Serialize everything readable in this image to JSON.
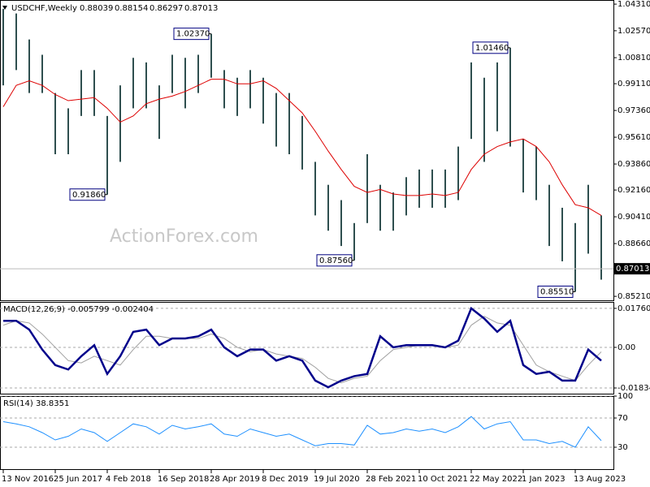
{
  "chart_data": [
    {
      "type": "range",
      "title": "USDCHF,Weekly",
      "header_values": [
        0.88039,
        0.88154,
        0.86297,
        0.87013
      ],
      "watermark": "ActionForex.com",
      "categories": [
        "13 Nov 2016",
        null,
        null,
        null,
        "25 Jun 2017",
        null,
        null,
        null,
        "4 Feb 2018",
        null,
        null,
        null,
        "16 Sep 2018",
        null,
        null,
        null,
        "28 Apr 2019",
        null,
        null,
        null,
        "8 Dec 2019",
        null,
        null,
        null,
        "19 Jul 2020",
        null,
        null,
        null,
        "28 Feb 2021",
        null,
        null,
        null,
        "10 Oct 2021",
        null,
        null,
        null,
        "22 May 2022",
        null,
        null,
        null,
        "1 Jan 2023",
        null,
        null,
        null,
        "13 Aug 2023",
        null,
        null
      ],
      "high": [
        1.04,
        1.037,
        1.02,
        1.01,
        0.985,
        0.975,
        1.0,
        1.0,
        0.97,
        0.99,
        1.008,
        1.005,
        0.99,
        1.01,
        1.008,
        1.01,
        1.0237,
        1.0,
        0.995,
        1.0,
        0.995,
        0.985,
        0.985,
        0.97,
        0.94,
        0.925,
        0.915,
        0.9,
        0.945,
        0.925,
        0.92,
        0.93,
        0.935,
        0.935,
        0.935,
        0.95,
        1.005,
        0.995,
        1.005,
        1.0146,
        0.955,
        0.95,
        0.925,
        0.91,
        0.9,
        0.925,
        0.905
      ],
      "low": [
        0.99,
        1.0,
        0.985,
        0.985,
        0.945,
        0.945,
        0.97,
        0.97,
        0.9186,
        0.94,
        0.975,
        0.975,
        0.955,
        0.985,
        0.975,
        0.985,
        0.995,
        0.975,
        0.97,
        0.975,
        0.965,
        0.95,
        0.945,
        0.935,
        0.905,
        0.895,
        0.885,
        0.8756,
        0.9,
        0.895,
        0.895,
        0.905,
        0.91,
        0.91,
        0.91,
        0.915,
        0.955,
        0.94,
        0.96,
        0.95,
        0.92,
        0.915,
        0.885,
        0.875,
        0.8551,
        0.88,
        0.863
      ],
      "color": "#2f4f4f",
      "ma": {
        "color": "#dd0000",
        "values": [
          0.976,
          0.99,
          0.993,
          0.99,
          0.984,
          0.98,
          0.981,
          0.982,
          0.975,
          0.966,
          0.97,
          0.978,
          0.981,
          0.983,
          0.986,
          0.99,
          0.994,
          0.994,
          0.991,
          0.991,
          0.993,
          0.988,
          0.98,
          0.972,
          0.96,
          0.947,
          0.935,
          0.924,
          0.92,
          0.922,
          0.919,
          0.918,
          0.918,
          0.919,
          0.918,
          0.92,
          0.935,
          0.945,
          0.95,
          0.953,
          0.955,
          0.95,
          0.94,
          0.925,
          0.912,
          0.91,
          0.905
        ]
      },
      "annotations": [
        {
          "value": 1.0237,
          "label": "1.02370"
        },
        {
          "value": 1.0146,
          "label": "1.01460"
        },
        {
          "value": 0.9186,
          "label": "0.91860"
        },
        {
          "value": 0.8756,
          "label": "0.87560"
        },
        {
          "value": 0.8551,
          "label": "0.85510"
        }
      ],
      "ylim": [
        0.8495,
        1.0458
      ],
      "yticks": [
        {
          "value": 1.0431,
          "label": "1.04310"
        },
        {
          "value": 1.0257,
          "label": "1.02570"
        },
        {
          "value": 1.0081,
          "label": "1.00810"
        },
        {
          "value": 0.9911,
          "label": "0.99110"
        },
        {
          "value": 0.9736,
          "label": "0.97360"
        },
        {
          "value": 0.9561,
          "label": "0.95610"
        },
        {
          "value": 0.9386,
          "label": "0.93860"
        },
        {
          "value": 0.9216,
          "label": "0.92160"
        },
        {
          "value": 0.9041,
          "label": "0.90410"
        },
        {
          "value": 0.8866,
          "label": "0.88660"
        },
        {
          "value": 0.8521,
          "label": "0.85210"
        }
      ]
    },
    {
      "type": "line",
      "title": "MACD(12,26,9) -0.005799 -0.002404",
      "series": [
        {
          "color": "#00008b",
          "values": [
            0.012,
            0.012,
            0.008,
            -0.001,
            -0.008,
            -0.01,
            -0.004,
            0.001,
            -0.012,
            -0.004,
            0.007,
            0.008,
            0.001,
            0.004,
            0.004,
            0.005,
            0.008,
            0.0,
            -0.004,
            -0.001,
            -0.001,
            -0.006,
            -0.004,
            -0.006,
            -0.015,
            -0.018,
            -0.015,
            -0.013,
            -0.012,
            0.005,
            0.0,
            0.001,
            0.001,
            0.001,
            0.0,
            0.003,
            0.0176,
            0.013,
            0.007,
            0.012,
            -0.008,
            -0.012,
            -0.011,
            -0.015,
            -0.015,
            -0.001,
            -0.006
          ]
        },
        {
          "color": "#a0a0a0",
          "values": [
            0.01,
            0.012,
            0.011,
            0.006,
            0.0,
            -0.006,
            -0.007,
            -0.004,
            -0.006,
            -0.008,
            -0.001,
            0.005,
            0.005,
            0.004,
            0.004,
            0.004,
            0.006,
            0.004,
            0.0,
            -0.002,
            -0.001,
            -0.003,
            -0.004,
            -0.005,
            -0.009,
            -0.014,
            -0.016,
            -0.014,
            -0.013,
            -0.006,
            -0.001,
            0.0,
            0.001,
            0.001,
            0.0,
            0.001,
            0.01,
            0.014,
            0.011,
            0.01,
            0.001,
            -0.008,
            -0.011,
            -0.013,
            -0.015,
            -0.008,
            -0.002
          ]
        }
      ],
      "ylim": [
        -0.0209,
        0.0205
      ],
      "yticks": [
        0.017603,
        {
          "value": 0,
          "label": "0.00"
        },
        -0.01834
      ]
    },
    {
      "type": "line",
      "title": "RSI(14) 38.8351",
      "series": [
        {
          "color": "#1e90ff",
          "values": [
            65,
            62,
            58,
            50,
            40,
            45,
            55,
            50,
            38,
            50,
            62,
            58,
            48,
            60,
            55,
            58,
            62,
            48,
            45,
            55,
            50,
            45,
            48,
            40,
            32,
            35,
            35,
            33,
            60,
            48,
            50,
            55,
            52,
            55,
            50,
            58,
            72,
            55,
            62,
            65,
            40,
            40,
            35,
            38,
            30,
            58,
            39
          ]
        }
      ],
      "ylim": [
        0,
        100
      ],
      "yticks": [
        100,
        70,
        30
      ]
    }
  ]
}
